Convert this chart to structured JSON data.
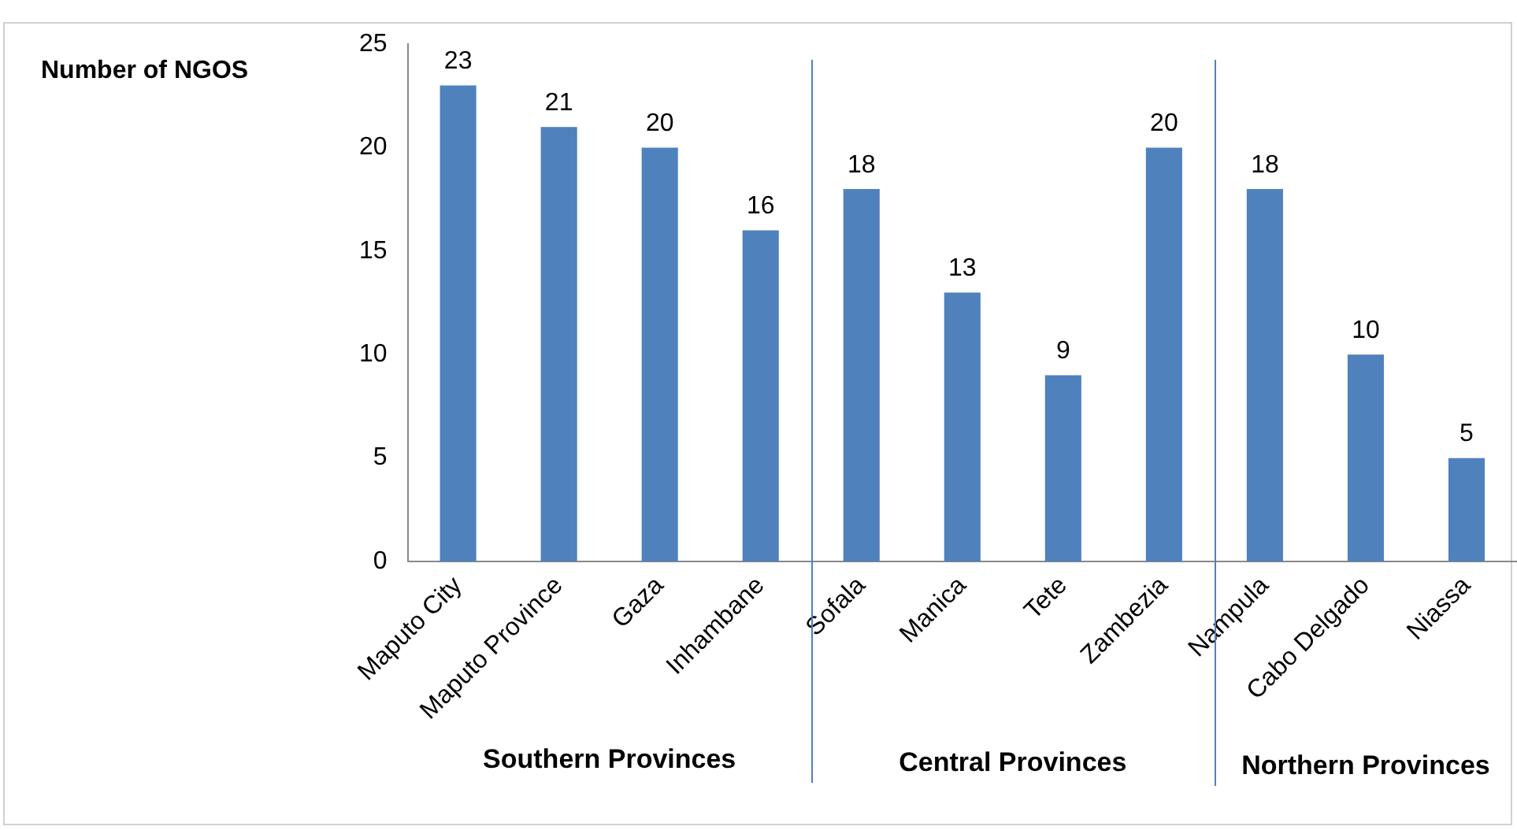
{
  "chart_data": {
    "type": "bar",
    "ylabel": "Number of NGOS",
    "categories": [
      "Maputo City",
      "Maputo Province",
      "Gaza",
      "Inhambane",
      "Sofala",
      "Manica",
      "Tete",
      "Zambezia",
      "Nampula",
      "Cabo Delgado",
      "Niassa"
    ],
    "values": [
      23,
      21,
      20,
      16,
      18,
      13,
      9,
      20,
      18,
      10,
      5
    ],
    "color": "#4f81bd",
    "ylim": [
      0,
      25
    ],
    "yticks": [
      0,
      5,
      10,
      15,
      20,
      25
    ],
    "grid": false,
    "legend": false,
    "data_labels": true,
    "ref_lines": [
      {
        "axis": "x",
        "value": "Sofala",
        "color": "#4f81bd"
      },
      {
        "axis": "x",
        "value": "Nampula",
        "color": "#4f81bd"
      }
    ],
    "annotations": [
      "Southern Provinces",
      "Central Provinces",
      "Northern Provinces"
    ]
  }
}
